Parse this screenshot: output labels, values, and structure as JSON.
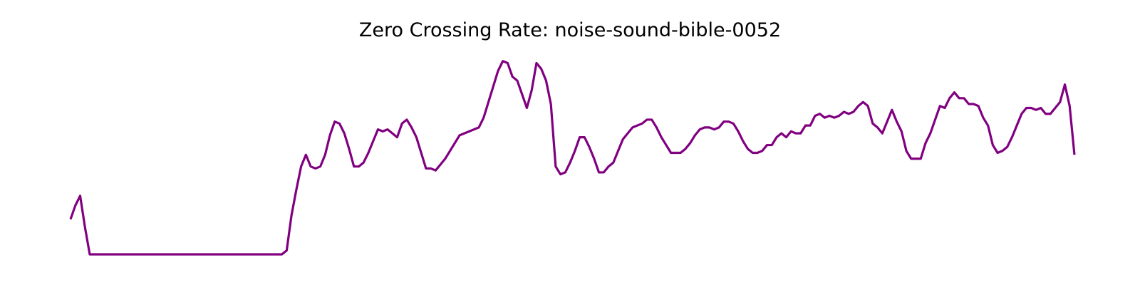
{
  "chart_data": {
    "type": "line",
    "title": "Zero Crossing Rate: noise-sound-bible-0052",
    "xlabel": "",
    "ylabel": "",
    "axes_visible": false,
    "grid": false,
    "line_color": "#800080",
    "ylim": [
      0.0,
      1.0
    ],
    "series": [
      {
        "values": [
          0.18,
          0.25,
          0.3,
          0.14,
          0.0,
          0.0,
          0.0,
          0.0,
          0.0,
          0.0,
          0.0,
          0.0,
          0.0,
          0.0,
          0.0,
          0.0,
          0.0,
          0.0,
          0.0,
          0.0,
          0.0,
          0.0,
          0.0,
          0.0,
          0.0,
          0.0,
          0.0,
          0.0,
          0.0,
          0.0,
          0.0,
          0.0,
          0.0,
          0.0,
          0.0,
          0.0,
          0.0,
          0.0,
          0.0,
          0.0,
          0.0,
          0.0,
          0.0,
          0.0,
          0.0,
          0.02,
          0.2,
          0.33,
          0.45,
          0.51,
          0.45,
          0.44,
          0.45,
          0.51,
          0.61,
          0.68,
          0.67,
          0.62,
          0.54,
          0.45,
          0.45,
          0.47,
          0.52,
          0.58,
          0.64,
          0.63,
          0.64,
          0.62,
          0.6,
          0.67,
          0.69,
          0.65,
          0.6,
          0.52,
          0.44,
          0.44,
          0.43,
          0.46,
          0.49,
          0.53,
          0.57,
          0.61,
          0.62,
          0.63,
          0.64,
          0.65,
          0.7,
          0.78,
          0.86,
          0.94,
          0.99,
          0.98,
          0.91,
          0.89,
          0.82,
          0.75,
          0.84,
          0.98,
          0.95,
          0.89,
          0.77,
          0.45,
          0.41,
          0.42,
          0.47,
          0.53,
          0.6,
          0.6,
          0.55,
          0.49,
          0.42,
          0.42,
          0.45,
          0.47,
          0.53,
          0.59,
          0.62,
          0.65,
          0.66,
          0.67,
          0.69,
          0.69,
          0.65,
          0.6,
          0.56,
          0.52,
          0.52,
          0.52,
          0.54,
          0.57,
          0.61,
          0.64,
          0.65,
          0.65,
          0.64,
          0.65,
          0.68,
          0.68,
          0.67,
          0.63,
          0.58,
          0.54,
          0.52,
          0.52,
          0.53,
          0.56,
          0.56,
          0.6,
          0.62,
          0.6,
          0.63,
          0.62,
          0.62,
          0.66,
          0.66,
          0.71,
          0.72,
          0.7,
          0.71,
          0.7,
          0.71,
          0.73,
          0.72,
          0.73,
          0.76,
          0.78,
          0.76,
          0.67,
          0.65,
          0.62,
          0.68,
          0.74,
          0.68,
          0.63,
          0.53,
          0.49,
          0.49,
          0.49,
          0.57,
          0.62,
          0.69,
          0.76,
          0.75,
          0.8,
          0.83,
          0.8,
          0.8,
          0.77,
          0.77,
          0.76,
          0.7,
          0.66,
          0.56,
          0.52,
          0.53,
          0.55,
          0.6,
          0.66,
          0.72,
          0.75,
          0.75,
          0.74,
          0.75,
          0.72,
          0.72,
          0.75,
          0.78,
          0.87,
          0.76,
          0.51
        ]
      }
    ]
  }
}
